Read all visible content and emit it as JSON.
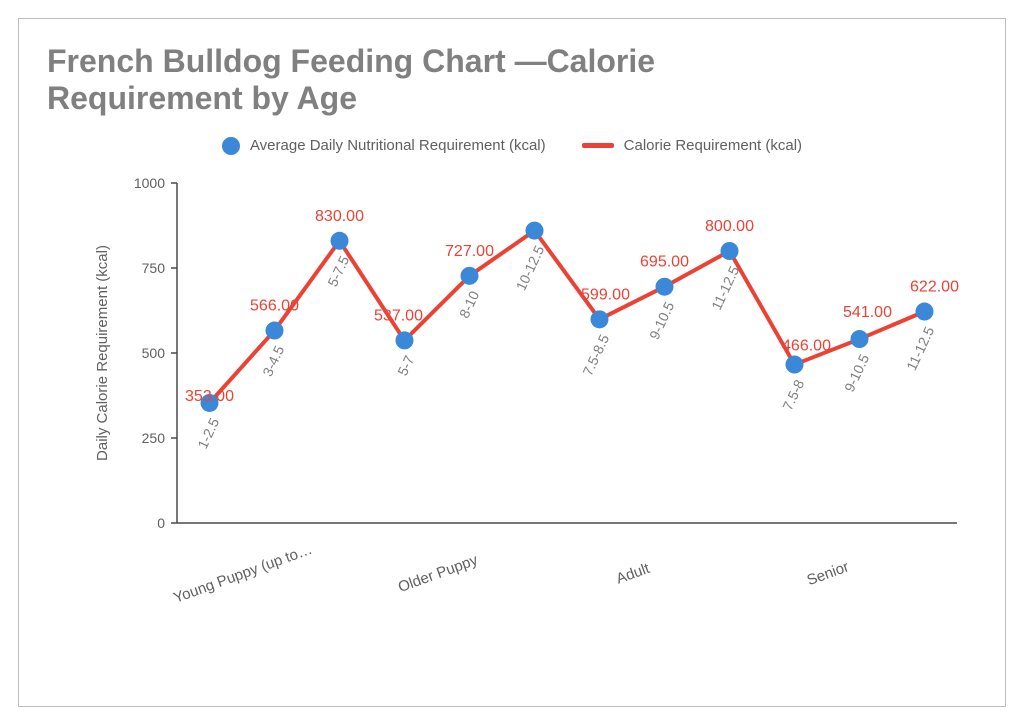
{
  "chart": {
    "type": "line-with-markers",
    "title": "French Bulldog Feeding Chart —Calorie Requirement by Age",
    "title_color": "#808080",
    "title_fontsize": 32,
    "title_fontweight": "bold",
    "background_color": "#ffffff",
    "panel_border_color": "#bdbdbd",
    "ylabel": "Daily Calorie Requirement (kcal)",
    "ylabel_fontsize": 15,
    "ylim": [
      0,
      1000
    ],
    "yticks": [
      0,
      250,
      500,
      750,
      1000
    ],
    "ytick_fontsize": 14,
    "axis_color": "#5f5f5f",
    "axis_line_color": "#4a4a4a",
    "legend": {
      "items": [
        {
          "kind": "dot",
          "label": "Average Daily Nutritional Requirement (kcal)",
          "color": "#3b87d8"
        },
        {
          "kind": "line",
          "label": "Calorie Requirement (kcal)",
          "color": "#ea4335"
        }
      ],
      "fontsize": 15,
      "text_color": "#5f5f5f"
    },
    "series": {
      "line_color": "#ea4335",
      "line_width": 4,
      "marker_color": "#3b87d8",
      "marker_radius": 9,
      "value_label_color": "#ea4335",
      "value_label_fontsize": 16,
      "point_label_color": "#808080",
      "point_label_fontsize": 14,
      "point_label_rotation": -65
    },
    "groups": [
      {
        "label": "Young Puppy (up to…",
        "start": 0,
        "end": 2
      },
      {
        "label": "Older Puppy",
        "start": 3,
        "end": 5
      },
      {
        "label": "Adult",
        "start": 6,
        "end": 8
      },
      {
        "label": "Senior",
        "start": 9,
        "end": 11
      }
    ],
    "group_label_rotation": -20,
    "group_label_fontsize": 15,
    "points": [
      {
        "x_label": "1-2.5",
        "value": 353.0,
        "value_text": "353.00",
        "value_dx": 0,
        "value_dy": 12
      },
      {
        "x_label": "3-4.5",
        "value": 566.0,
        "value_text": "566.00",
        "value_dx": 0,
        "value_dy": -6
      },
      {
        "x_label": "5-7.5",
        "value": 830.0,
        "value_text": "830.00",
        "value_dx": 0,
        "value_dy": -6
      },
      {
        "x_label": "5-7",
        "value": 537.0,
        "value_text": "537.00",
        "value_dx": -6,
        "value_dy": -6
      },
      {
        "x_label": "8-10",
        "value": 727.0,
        "value_text": "727.00",
        "value_dx": 0,
        "value_dy": -6
      },
      {
        "x_label": "10-12.5",
        "value": 860.0,
        "value_text": "",
        "value_dx": 0,
        "value_dy": 0
      },
      {
        "x_label": "7.5-8.5",
        "value": 599.0,
        "value_text": "599.00",
        "value_dx": 6,
        "value_dy": -6
      },
      {
        "x_label": "9-10.5",
        "value": 695.0,
        "value_text": "695.00",
        "value_dx": 0,
        "value_dy": -6
      },
      {
        "x_label": "11-12.5",
        "value": 800.0,
        "value_text": "800.00",
        "value_dx": 0,
        "value_dy": -6
      },
      {
        "x_label": "7.5-8",
        "value": 466.0,
        "value_text": "466.00",
        "value_dx": 12,
        "value_dy": 0
      },
      {
        "x_label": "9-10.5",
        "value": 541.0,
        "value_text": "541.00",
        "value_dx": 8,
        "value_dy": -8
      },
      {
        "x_label": "11-12.5",
        "value": 622.0,
        "value_text": "622.00",
        "value_dx": 10,
        "value_dy": -6
      }
    ]
  }
}
